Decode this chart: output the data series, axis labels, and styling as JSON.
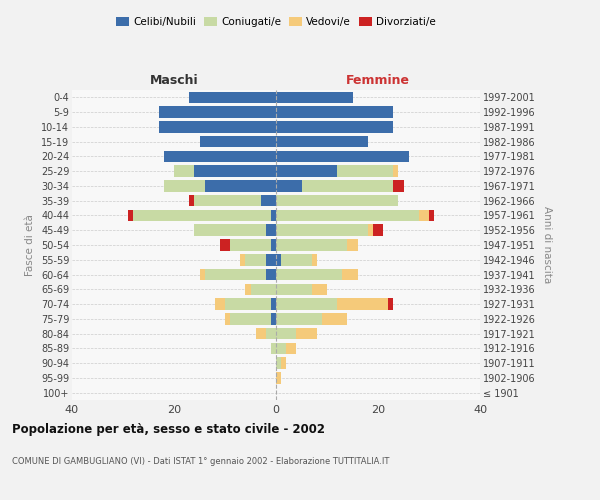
{
  "age_groups": [
    "100+",
    "95-99",
    "90-94",
    "85-89",
    "80-84",
    "75-79",
    "70-74",
    "65-69",
    "60-64",
    "55-59",
    "50-54",
    "45-49",
    "40-44",
    "35-39",
    "30-34",
    "25-29",
    "20-24",
    "15-19",
    "10-14",
    "5-9",
    "0-4"
  ],
  "birth_years": [
    "≤ 1901",
    "1902-1906",
    "1907-1911",
    "1912-1916",
    "1917-1921",
    "1922-1926",
    "1927-1931",
    "1932-1936",
    "1937-1941",
    "1942-1946",
    "1947-1951",
    "1952-1956",
    "1957-1961",
    "1962-1966",
    "1967-1971",
    "1972-1976",
    "1977-1981",
    "1982-1986",
    "1987-1991",
    "1992-1996",
    "1997-2001"
  ],
  "maschi": {
    "celibi": [
      0,
      0,
      0,
      0,
      0,
      1,
      1,
      0,
      2,
      2,
      1,
      2,
      1,
      3,
      14,
      16,
      22,
      15,
      23,
      23,
      17
    ],
    "coniugati": [
      0,
      0,
      0,
      1,
      2,
      8,
      9,
      5,
      12,
      4,
      8,
      14,
      27,
      13,
      8,
      4,
      0,
      0,
      0,
      0,
      0
    ],
    "vedovi": [
      0,
      0,
      0,
      0,
      2,
      1,
      2,
      1,
      1,
      1,
      0,
      0,
      0,
      0,
      0,
      0,
      0,
      0,
      0,
      0,
      0
    ],
    "divorziati": [
      0,
      0,
      0,
      0,
      0,
      0,
      0,
      0,
      0,
      0,
      2,
      0,
      1,
      1,
      0,
      0,
      0,
      0,
      0,
      0,
      0
    ]
  },
  "femmine": {
    "nubili": [
      0,
      0,
      0,
      0,
      0,
      0,
      0,
      0,
      0,
      1,
      0,
      0,
      0,
      0,
      5,
      12,
      26,
      18,
      23,
      23,
      15
    ],
    "coniugate": [
      0,
      0,
      1,
      2,
      4,
      9,
      12,
      7,
      13,
      6,
      14,
      18,
      28,
      24,
      18,
      11,
      0,
      0,
      0,
      0,
      0
    ],
    "vedove": [
      0,
      1,
      1,
      2,
      4,
      5,
      10,
      3,
      3,
      1,
      2,
      1,
      2,
      0,
      0,
      1,
      0,
      0,
      0,
      0,
      0
    ],
    "divorziate": [
      0,
      0,
      0,
      0,
      0,
      0,
      1,
      0,
      0,
      0,
      0,
      2,
      1,
      0,
      2,
      0,
      0,
      0,
      0,
      0,
      0
    ]
  },
  "colors": {
    "celibi": "#3c6daa",
    "coniugati": "#c8daa4",
    "vedovi": "#f5ca7a",
    "divorziati": "#cc2222"
  },
  "xlim": 40,
  "title": "Popolazione per età, sesso e stato civile - 2002",
  "subtitle": "COMUNE DI GAMBUGLIANO (VI) - Dati ISTAT 1° gennaio 2002 - Elaborazione TUTTITALIA.IT",
  "ylabel_left": "Fasce di età",
  "ylabel_right": "Anni di nascita",
  "label_maschi": "Maschi",
  "label_femmine": "Femmine",
  "legend_labels": [
    "Celibi/Nubili",
    "Coniugati/e",
    "Vedovi/e",
    "Divorziati/e"
  ],
  "bg_color": "#f2f2f2",
  "plot_bg": "#f8f8f8"
}
